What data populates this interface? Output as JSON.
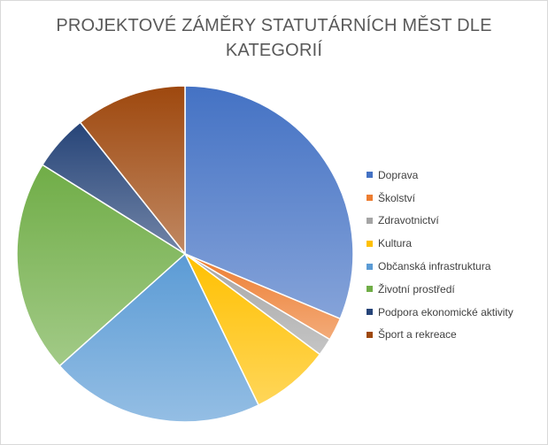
{
  "chart_data": {
    "type": "pie",
    "title_lines": [
      "PROJEKTOVÉ ZÁMĚRY STATUTÁRNÍCH MĚST DLE",
      "KATEGORIÍ"
    ],
    "categories": [
      "Doprava",
      "Školství",
      "Zdravotnictví",
      "Kultura",
      "Občanská infrastruktura",
      "Životní prostředí",
      "Podpora ekonomické aktivity",
      "Šport a rekreace"
    ],
    "values": [
      31.3,
      2.2,
      1.7,
      7.6,
      20.6,
      20.5,
      5.4,
      10.7
    ],
    "colors": [
      "#4472c4",
      "#ed7d31",
      "#a5a5a5",
      "#ffc000",
      "#5b9bd5",
      "#70ad47",
      "#264478",
      "#9e480e"
    ],
    "legend_position": "right",
    "start_angle_deg": 0,
    "direction": "clockwise"
  }
}
